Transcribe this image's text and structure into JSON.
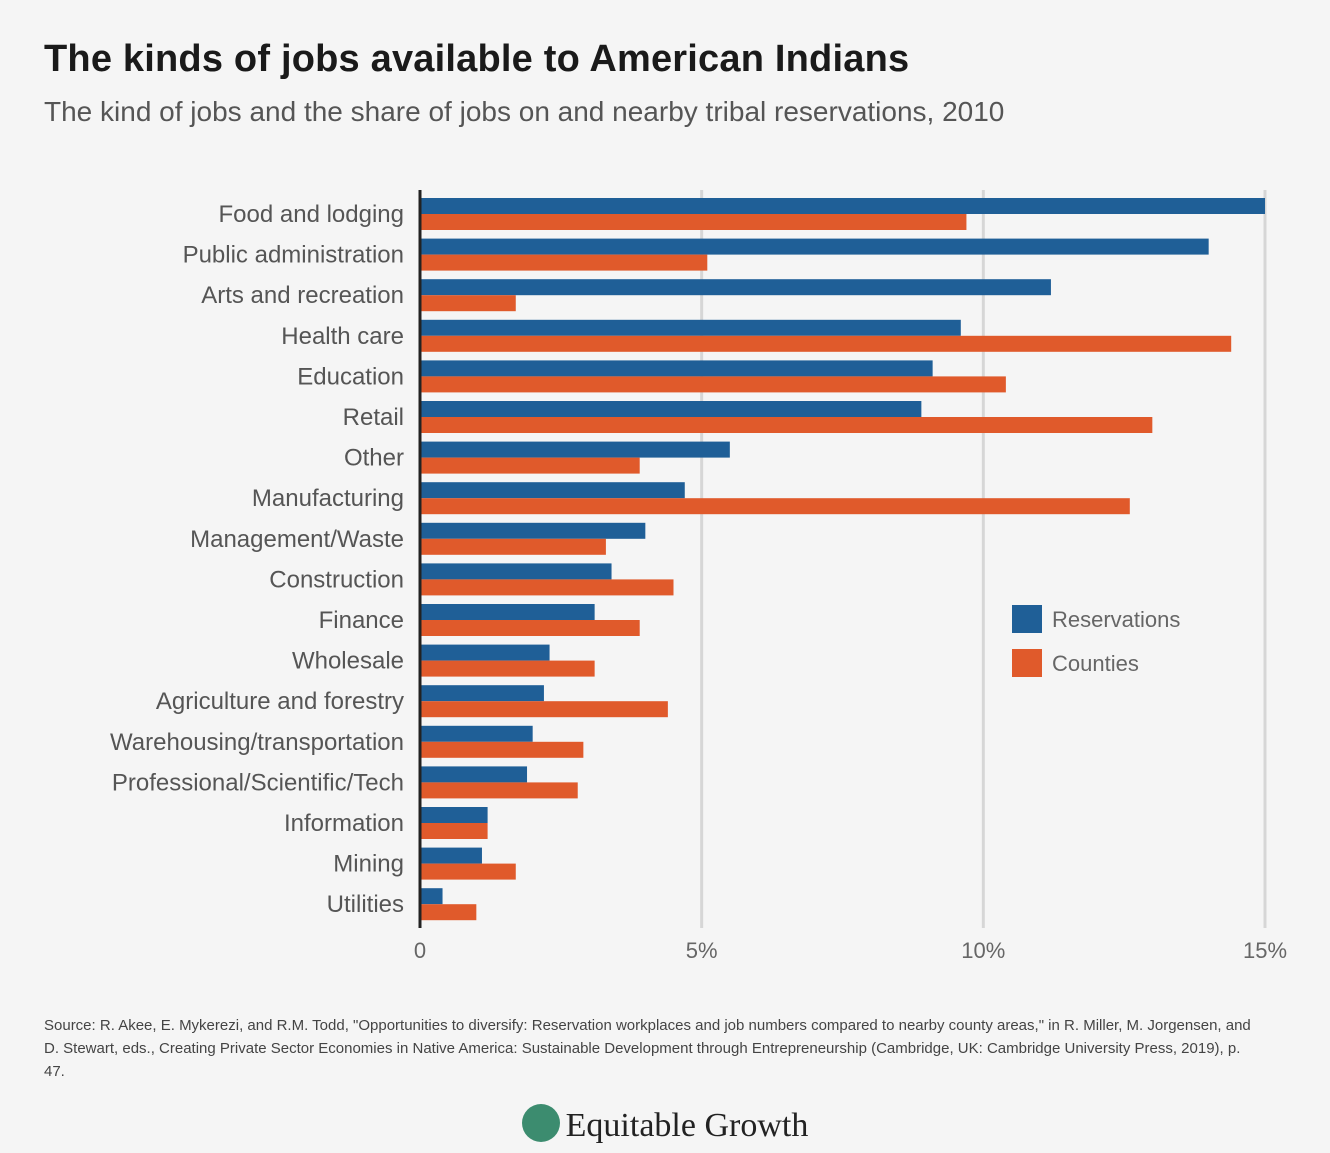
{
  "chart_data": {
    "type": "bar",
    "orientation": "horizontal",
    "title": "The kinds of jobs available to American Indians",
    "subtitle": "The kind of jobs and the share of jobs on and nearby tribal reservations, 2010",
    "categories": [
      "Food and lodging",
      "Public administration",
      "Arts and recreation",
      "Health care",
      "Education",
      "Retail",
      "Other",
      "Manufacturing",
      "Management/Waste",
      "Construction",
      "Finance",
      "Wholesale",
      "Agriculture and forestry",
      "Warehousing/transportation",
      "Professional/Scientific/Tech",
      "Information",
      "Mining",
      "Utilities"
    ],
    "series": [
      {
        "name": "Reservations",
        "color": "#1f5f97",
        "values": [
          15.0,
          14.0,
          11.2,
          9.6,
          9.1,
          8.9,
          5.5,
          4.7,
          4.0,
          3.4,
          3.1,
          2.3,
          2.2,
          2.0,
          1.9,
          1.2,
          1.1,
          0.4
        ]
      },
      {
        "name": "Counties",
        "color": "#e05a2b",
        "values": [
          9.7,
          5.1,
          1.7,
          14.4,
          10.4,
          13.0,
          3.9,
          12.6,
          3.3,
          4.5,
          3.9,
          3.1,
          4.4,
          2.9,
          2.8,
          1.2,
          1.7,
          1.0
        ]
      }
    ],
    "xlim": [
      0,
      15.5
    ],
    "x_ticks": [
      "0",
      "5%",
      "10%",
      "15%"
    ],
    "x_tick_values": [
      0,
      5,
      10,
      15
    ],
    "grid": true,
    "legend_position": "right"
  },
  "source": "Source: R. Akee, E. Mykerezi, and R.M. Todd, \"Opportunities to diversify: Reservation workplaces and job numbers compared to nearby county areas,\" in R. Miller, M. Jorgensen, and D. Stewart, eds., Creating Private Sector Economies in Native America: Sustainable Development through Entrepreneurship (Cambridge, UK: Cambridge University Press, 2019), p. 47.",
  "logo_text": "Equitable Growth"
}
